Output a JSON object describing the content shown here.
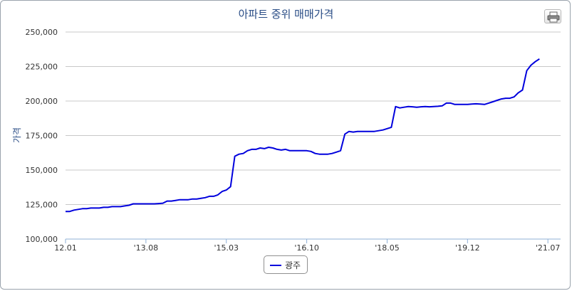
{
  "chart_data": {
    "type": "line",
    "title": "아파트 중위 매매가격",
    "ylabel": "가격",
    "xlabel": "",
    "ylim": [
      100000,
      250000
    ],
    "yticks": [
      100000,
      125000,
      150000,
      175000,
      200000,
      225000,
      250000
    ],
    "ytick_labels": [
      "100,000",
      "125,000",
      "150,000",
      "175,000",
      "200,000",
      "225,000",
      "250,000"
    ],
    "xticks": [
      {
        "label": "12.01",
        "index": 0
      },
      {
        "label": "'13.08",
        "index": 19
      },
      {
        "label": "'15.03",
        "index": 38
      },
      {
        "label": "'16.10",
        "index": 57
      },
      {
        "label": "'18.05",
        "index": 76
      },
      {
        "label": "'19.12",
        "index": 95
      },
      {
        "label": "'21.07",
        "index": 114
      }
    ],
    "x_range": [
      0,
      117
    ],
    "grid": true,
    "legend_position": "bottom-center",
    "series": [
      {
        "name": "광주",
        "color": "#0000dd",
        "points": [
          [
            0,
            120000
          ],
          [
            1,
            120000
          ],
          [
            2,
            121000
          ],
          [
            3,
            121500
          ],
          [
            4,
            122000
          ],
          [
            5,
            122000
          ],
          [
            6,
            122500
          ],
          [
            7,
            122500
          ],
          [
            8,
            122500
          ],
          [
            9,
            123000
          ],
          [
            10,
            123000
          ],
          [
            11,
            123500
          ],
          [
            12,
            123500
          ],
          [
            13,
            123500
          ],
          [
            14,
            124000
          ],
          [
            15,
            124500
          ],
          [
            16,
            125500
          ],
          [
            17,
            125500
          ],
          [
            18,
            125500
          ],
          [
            19,
            125500
          ],
          [
            20,
            125500
          ],
          [
            21,
            125500
          ],
          [
            22,
            125700
          ],
          [
            23,
            126000
          ],
          [
            24,
            127500
          ],
          [
            25,
            127500
          ],
          [
            26,
            128000
          ],
          [
            27,
            128500
          ],
          [
            28,
            128500
          ],
          [
            29,
            128500
          ],
          [
            30,
            129000
          ],
          [
            31,
            129000
          ],
          [
            32,
            129500
          ],
          [
            33,
            130000
          ],
          [
            34,
            131000
          ],
          [
            35,
            131000
          ],
          [
            36,
            132000
          ],
          [
            37,
            134500
          ],
          [
            38,
            135500
          ],
          [
            39,
            138000
          ],
          [
            40,
            160000
          ],
          [
            41,
            161500
          ],
          [
            42,
            162000
          ],
          [
            43,
            164000
          ],
          [
            44,
            165000
          ],
          [
            45,
            165000
          ],
          [
            46,
            166000
          ],
          [
            47,
            165500
          ],
          [
            48,
            166500
          ],
          [
            49,
            166000
          ],
          [
            50,
            165000
          ],
          [
            51,
            164500
          ],
          [
            52,
            165000
          ],
          [
            53,
            164000
          ],
          [
            54,
            164000
          ],
          [
            55,
            164000
          ],
          [
            56,
            164000
          ],
          [
            57,
            164000
          ],
          [
            58,
            163500
          ],
          [
            59,
            162000
          ],
          [
            60,
            161500
          ],
          [
            61,
            161500
          ],
          [
            62,
            161500
          ],
          [
            63,
            162000
          ],
          [
            64,
            163000
          ],
          [
            65,
            164000
          ],
          [
            66,
            176000
          ],
          [
            67,
            178000
          ],
          [
            68,
            177500
          ],
          [
            69,
            178000
          ],
          [
            70,
            178000
          ],
          [
            71,
            178000
          ],
          [
            72,
            178000
          ],
          [
            73,
            178000
          ],
          [
            74,
            178500
          ],
          [
            75,
            179000
          ],
          [
            76,
            180000
          ],
          [
            77,
            181000
          ],
          [
            78,
            196000
          ],
          [
            79,
            195000
          ],
          [
            80,
            195500
          ],
          [
            81,
            196000
          ],
          [
            82,
            195800
          ],
          [
            83,
            195500
          ],
          [
            84,
            195800
          ],
          [
            85,
            196000
          ],
          [
            86,
            195800
          ],
          [
            87,
            196000
          ],
          [
            88,
            196200
          ],
          [
            89,
            196500
          ],
          [
            90,
            198500
          ],
          [
            91,
            198500
          ],
          [
            92,
            197500
          ],
          [
            93,
            197500
          ],
          [
            94,
            197500
          ],
          [
            95,
            197500
          ],
          [
            96,
            197800
          ],
          [
            97,
            198000
          ],
          [
            98,
            197800
          ],
          [
            99,
            197500
          ],
          [
            100,
            198500
          ],
          [
            101,
            199500
          ],
          [
            102,
            200500
          ],
          [
            103,
            201500
          ],
          [
            104,
            202000
          ],
          [
            105,
            202000
          ],
          [
            106,
            203000
          ],
          [
            107,
            206000
          ],
          [
            108,
            208000
          ],
          [
            109,
            222000
          ],
          [
            110,
            226000
          ],
          [
            111,
            228500
          ],
          [
            112,
            230500
          ]
        ]
      }
    ]
  }
}
